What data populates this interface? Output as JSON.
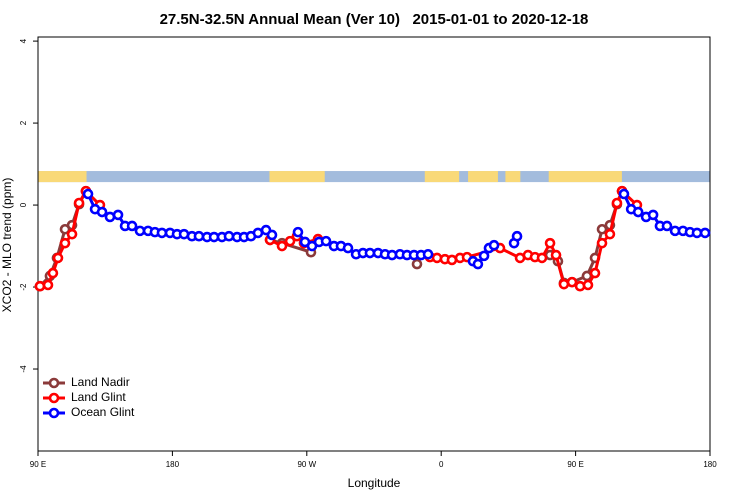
{
  "chart_data": {
    "type": "line",
    "title": "27.5N-32.5N Annual Mean (Ver 10)   2015-01-01 to 2020-12-18",
    "xlabel": "Longitude",
    "ylabel": "XCO2 - MLO trend (ppm)",
    "xlim": [
      90,
      540
    ],
    "xticks": [
      {
        "value": 90,
        "label": "90 E"
      },
      180,
      {
        "value": 270,
        "label": "90 W"
      },
      {
        "value": 360,
        "label": "0"
      },
      {
        "value": 450,
        "label": "90 E"
      },
      {
        "value": 540,
        "label": "180"
      }
    ],
    "ylim": [
      -6,
      4.1
    ],
    "yticks": [
      -4,
      -2,
      0,
      2,
      4
    ],
    "legend": "bottomleft",
    "land_strip": {
      "ylim": [
        0.56,
        0.83
      ],
      "land_color": "#f9d978",
      "ocean_color": "#a3bcdd",
      "land_ranges": [
        [
          90,
          122.5
        ],
        [
          245,
          282
        ],
        [
          349,
          372
        ],
        [
          378,
          398
        ],
        [
          403,
          413
        ],
        [
          432,
          481
        ]
      ]
    },
    "series": [
      {
        "name": "Land Nadir",
        "color": "#8b3a3a",
        "x": [
          91.3,
          98.0,
          102.7,
          108.1,
          112.8,
          117.5,
          122.1,
          200,
          245.4,
          253.4,
          272.8,
          300,
          343.8,
          400,
          432.9,
          438.2,
          442.2,
          447.6,
          457.6,
          463.0,
          467.7,
          473.0,
          477.7,
          481.1
        ],
        "values": [
          -1.98,
          -1.73,
          -1.29,
          -0.59,
          -0.49,
          0.02,
          0.34,
          null,
          -0.85,
          -0.93,
          -1.15,
          null,
          -1.44,
          null,
          -1.22,
          -1.37,
          -1.9,
          -1.88,
          -1.73,
          -1.29,
          -0.59,
          -0.49,
          0.02,
          0.34
        ]
      },
      {
        "name": "Land Glint",
        "color": "#ff0000",
        "x": [
          91.3,
          96.7,
          100.0,
          103.4,
          108.1,
          112.8,
          117.5,
          122.1,
          131.5,
          200,
          245.4,
          253.4,
          258.8,
          263.4,
          268.1,
          277.5,
          300,
          352.5,
          357.2,
          362.5,
          367.2,
          372.6,
          377.3,
          399.4,
          412.8,
          418.1,
          422.8,
          427.5,
          432.9,
          436.9,
          442.2,
          447.6,
          453.0,
          458.3,
          463.0,
          467.7,
          473.0,
          477.7,
          481.1,
          491.1
        ],
        "values": [
          -1.98,
          -1.95,
          -1.66,
          -1.29,
          -0.93,
          -0.71,
          0.05,
          0.34,
          0.0,
          null,
          -0.85,
          -1.0,
          -0.88,
          -0.76,
          -0.93,
          -0.83,
          null,
          -1.27,
          -1.29,
          -1.32,
          -1.34,
          -1.29,
          -1.27,
          -1.05,
          -1.29,
          -1.22,
          -1.27,
          -1.29,
          -0.93,
          -1.22,
          -1.93,
          -1.88,
          -1.98,
          -1.95,
          -1.66,
          -0.93,
          -0.71,
          0.05,
          0.34,
          0.0
        ]
      },
      {
        "name": "Ocean Glint",
        "color": "#0000ff",
        "x": [
          123.5,
          128.2,
          132.9,
          138.2,
          143.6,
          148.3,
          153.0,
          158.3,
          163.7,
          168.3,
          173.0,
          178.4,
          183.1,
          187.8,
          193.1,
          197.8,
          203.2,
          207.9,
          213.2,
          217.9,
          223.3,
          228.0,
          232.6,
          237.3,
          242.7,
          246.7,
          255,
          264.1,
          268.8,
          273.5,
          278.2,
          282.9,
          288.2,
          292.9,
          297.6,
          303.0,
          307.6,
          312.3,
          317.7,
          322.4,
          327.1,
          332.4,
          337.1,
          341.8,
          346.5,
          351.2,
          365,
          381.3,
          384.6,
          388.7,
          392.0,
          395.4,
          402,
          408.8,
          410.8,
          450,
          482.4,
          487.2,
          491.9,
          497.2,
          501.9,
          506.5,
          511.2,
          516.6,
          521.9,
          526.6,
          531.3,
          536.7
        ],
        "values": [
          0.27,
          -0.1,
          -0.17,
          -0.29,
          -0.24,
          -0.51,
          -0.51,
          -0.63,
          -0.63,
          -0.66,
          -0.68,
          -0.68,
          -0.71,
          -0.71,
          -0.76,
          -0.76,
          -0.78,
          -0.78,
          -0.78,
          -0.76,
          -0.78,
          -0.78,
          -0.76,
          -0.68,
          -0.61,
          -0.73,
          null,
          -0.66,
          -0.9,
          -1.0,
          -0.9,
          -0.88,
          -1.0,
          -1.0,
          -1.05,
          -1.2,
          -1.17,
          -1.17,
          -1.17,
          -1.2,
          -1.22,
          -1.2,
          -1.22,
          -1.22,
          -1.22,
          -1.2,
          null,
          -1.37,
          -1.44,
          -1.24,
          -1.05,
          -0.98,
          null,
          -0.93,
          -0.76,
          null,
          0.27,
          -0.1,
          -0.17,
          -0.29,
          -0.24,
          -0.51,
          -0.51,
          -0.63,
          -0.63,
          -0.66,
          -0.68,
          -0.68
        ]
      }
    ]
  }
}
